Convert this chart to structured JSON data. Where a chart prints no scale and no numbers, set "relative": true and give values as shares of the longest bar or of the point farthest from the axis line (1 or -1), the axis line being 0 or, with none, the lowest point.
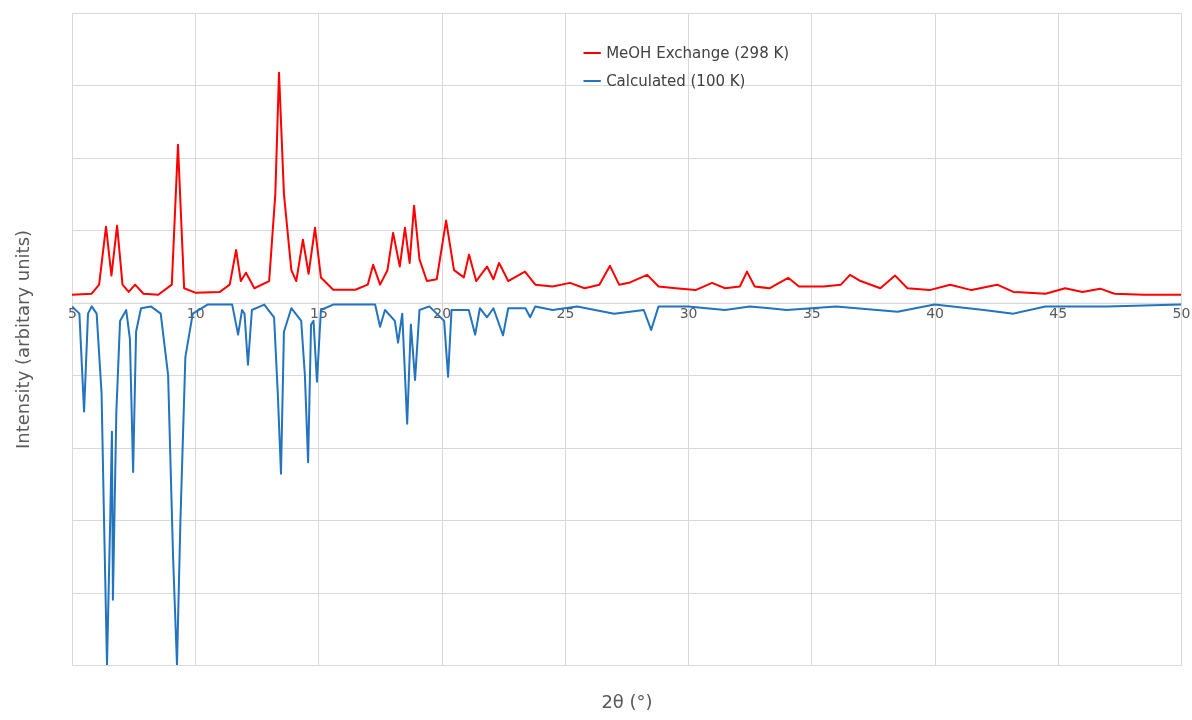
{
  "chart_data": {
    "type": "line",
    "xlabel": "2θ (°)",
    "ylabel": "Intensity (arbitary units)",
    "relative": true,
    "grid": true,
    "legend": "top right",
    "line_style": "solid",
    "marker": "none",
    "xlim": [
      5,
      50
    ],
    "xticks": [
      5,
      10,
      15,
      20,
      25,
      30,
      35,
      40,
      45,
      50
    ],
    "series": [
      {
        "name": "MeOH Exchange (298 K)",
        "color": "#ff0000",
        "x": [
          5,
          5.8,
          6.1,
          6.38,
          6.6,
          6.83,
          7.05,
          7.3,
          7.56,
          7.9,
          8.5,
          9.05,
          9.3,
          9.55,
          10,
          11,
          11.4,
          11.66,
          11.85,
          12.06,
          12.4,
          13.0,
          13.25,
          13.4,
          13.6,
          13.9,
          14.1,
          14.37,
          14.6,
          14.86,
          15.1,
          15.6,
          16.5,
          17.0,
          17.22,
          17.5,
          17.8,
          18.03,
          18.3,
          18.51,
          18.7,
          18.88,
          19.1,
          19.4,
          19.8,
          20.18,
          20.5,
          20.9,
          21.11,
          21.4,
          21.84,
          22.1,
          22.33,
          22.7,
          23.38,
          23.8,
          24.5,
          25.21,
          25.8,
          26.4,
          26.83,
          27.2,
          27.6,
          28.34,
          28.8,
          29.5,
          30.3,
          30.97,
          31.5,
          32.1,
          32.39,
          32.7,
          33.3,
          34.06,
          34.5,
          35.5,
          36.2,
          36.57,
          37.0,
          37.8,
          38.4,
          38.9,
          39.8,
          40.63,
          41.5,
          42.54,
          43.2,
          44.5,
          45.3,
          46.0,
          46.72,
          47.3,
          48.5,
          50
        ],
        "values": [
          0.022,
          0.025,
          0.05,
          0.21,
          0.075,
          0.213,
          0.05,
          0.03,
          0.05,
          0.025,
          0.022,
          0.05,
          0.436,
          0.04,
          0.028,
          0.03,
          0.05,
          0.146,
          0.06,
          0.083,
          0.04,
          0.06,
          0.3,
          0.635,
          0.3,
          0.09,
          0.06,
          0.174,
          0.08,
          0.207,
          0.07,
          0.036,
          0.036,
          0.05,
          0.105,
          0.05,
          0.09,
          0.193,
          0.1,
          0.207,
          0.11,
          0.268,
          0.12,
          0.06,
          0.065,
          0.227,
          0.09,
          0.07,
          0.133,
          0.06,
          0.1,
          0.065,
          0.11,
          0.06,
          0.086,
          0.05,
          0.045,
          0.055,
          0.04,
          0.05,
          0.102,
          0.05,
          0.055,
          0.077,
          0.045,
          0.04,
          0.035,
          0.055,
          0.04,
          0.045,
          0.086,
          0.045,
          0.04,
          0.069,
          0.045,
          0.045,
          0.05,
          0.077,
          0.06,
          0.04,
          0.075,
          0.04,
          0.035,
          0.05,
          0.035,
          0.05,
          0.03,
          0.025,
          0.04,
          0.03,
          0.039,
          0.025,
          0.022,
          0.022
        ]
      },
      {
        "name": "Calculated (100 K)",
        "color": "#2373be",
        "x": [
          5,
          5.3,
          5.49,
          5.65,
          5.8,
          6.0,
          6.2,
          6.3,
          6.42,
          6.55,
          6.62,
          6.66,
          6.8,
          6.95,
          7.2,
          7.35,
          7.48,
          7.6,
          7.8,
          8.2,
          8.6,
          8.9,
          9.1,
          9.26,
          9.4,
          9.6,
          9.9,
          10.5,
          11.5,
          11.74,
          11.9,
          12.0,
          12.14,
          12.3,
          12.8,
          13.2,
          13.35,
          13.48,
          13.6,
          13.9,
          14.3,
          14.45,
          14.58,
          14.7,
          14.8,
          14.94,
          15.1,
          15.6,
          17.3,
          17.5,
          17.7,
          18.1,
          18.23,
          18.4,
          18.6,
          18.75,
          18.92,
          19.1,
          19.5,
          20.1,
          20.26,
          20.4,
          21.1,
          21.36,
          21.55,
          21.84,
          22.1,
          22.49,
          22.7,
          23.4,
          23.59,
          23.8,
          24.5,
          25.5,
          27.0,
          28.2,
          28.5,
          28.8,
          30.0,
          31.5,
          32.5,
          34.0,
          36.0,
          38.5,
          40.0,
          42.0,
          43.2,
          44.5,
          47.0,
          50
        ],
        "values": [
          -0.01,
          -0.03,
          -0.3,
          -0.03,
          -0.01,
          -0.03,
          -0.25,
          -0.6,
          -1,
          -0.6,
          -0.356,
          -0.82,
          -0.3,
          -0.05,
          -0.02,
          -0.1,
          -0.467,
          -0.08,
          -0.015,
          -0.01,
          -0.03,
          -0.2,
          -0.7,
          -1,
          -0.6,
          -0.15,
          -0.03,
          -0.005,
          -0.005,
          -0.088,
          -0.02,
          -0.03,
          -0.171,
          -0.02,
          -0.005,
          -0.04,
          -0.25,
          -0.472,
          -0.08,
          -0.015,
          -0.05,
          -0.2,
          -0.44,
          -0.06,
          -0.05,
          -0.218,
          -0.02,
          -0.005,
          -0.005,
          -0.066,
          -0.02,
          -0.05,
          -0.11,
          -0.03,
          -0.334,
          -0.06,
          -0.213,
          -0.02,
          -0.01,
          -0.05,
          -0.204,
          -0.02,
          -0.02,
          -0.088,
          -0.015,
          -0.04,
          -0.015,
          -0.09,
          -0.015,
          -0.015,
          -0.04,
          -0.01,
          -0.02,
          -0.01,
          -0.03,
          -0.02,
          -0.075,
          -0.01,
          -0.01,
          -0.02,
          -0.01,
          -0.02,
          -0.01,
          -0.025,
          -0.005,
          -0.02,
          -0.03,
          -0.01,
          -0.01,
          -0.005
        ]
      }
    ]
  }
}
